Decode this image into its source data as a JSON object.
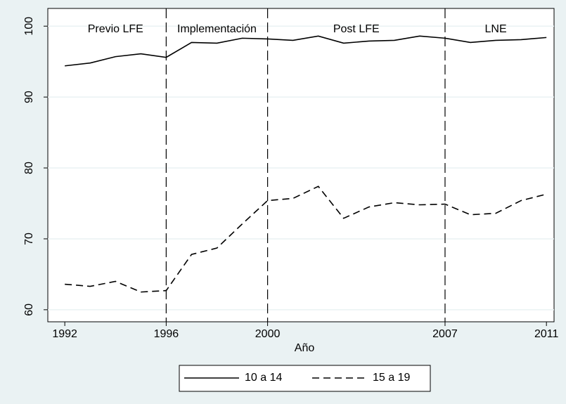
{
  "chart_data": {
    "type": "line",
    "x_label": "Año",
    "x": [
      1992,
      1993,
      1994,
      1995,
      1996,
      1997,
      1998,
      1999,
      2000,
      2001,
      2002,
      2003,
      2004,
      2005,
      2006,
      2007,
      2008,
      2009,
      2010,
      2011
    ],
    "series": [
      {
        "name": "10 a 14",
        "color": "#000000",
        "style": "solid",
        "values": [
          94.4,
          94.8,
          95.7,
          96.1,
          95.6,
          97.7,
          97.6,
          98.3,
          98.2,
          98.0,
          98.6,
          97.6,
          97.9,
          98.0,
          98.6,
          98.3,
          97.7,
          98.0,
          98.1,
          98.4
        ]
      },
      {
        "name": "15 a 19",
        "color": "#000000",
        "style": "dashed",
        "values": [
          63.6,
          63.3,
          64.0,
          62.5,
          62.7,
          67.8,
          68.7,
          72.1,
          75.4,
          75.7,
          77.4,
          72.9,
          74.5,
          75.1,
          74.8,
          74.9,
          73.4,
          73.6,
          75.4,
          76.3
        ]
      }
    ],
    "vlines": [
      1996,
      2000,
      2007
    ],
    "annotations": [
      {
        "text": "Previo LFE",
        "x": 1994
      },
      {
        "text": "Implementación",
        "x": 1998
      },
      {
        "text": "Post LFE",
        "x": 2003.5
      },
      {
        "text": "LNE",
        "x": 2009
      }
    ],
    "xlim": [
      1991.33,
      2011.3
    ],
    "xticks": [
      1992,
      1996,
      2000,
      2007,
      2011
    ],
    "ylim": [
      58.3,
      102.5
    ],
    "yticks": [
      60,
      70,
      80,
      90,
      100
    ],
    "grid": true,
    "legend_position": "bottom"
  }
}
